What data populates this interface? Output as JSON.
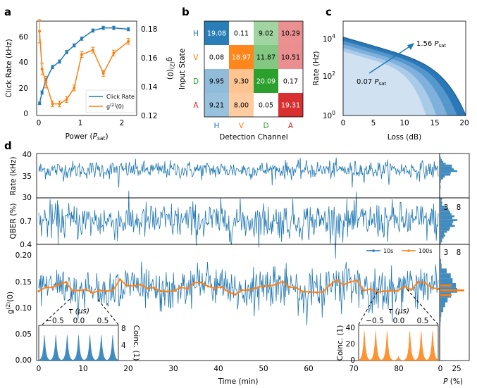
{
  "figure": {
    "panel_labels": [
      "a",
      "b",
      "c",
      "d"
    ]
  },
  "chart_data": [
    {
      "panel": "a",
      "type": "line",
      "xlabel": "Power (Psat)",
      "xlabel_parts": [
        "Power (",
        "P",
        "sat",
        ")"
      ],
      "ylabel": "Click Rate (kHz)",
      "y2label": "g(2)(0)",
      "xlim": [
        0,
        2.4
      ],
      "ylim": [
        0,
        70
      ],
      "y2lim": [
        0.12,
        0.185
      ],
      "xticks": [
        "0",
        "1",
        "2"
      ],
      "yticks": [
        "0",
        "20",
        "40",
        "60"
      ],
      "y2ticks": [
        "0.12",
        "0.14",
        "0.16",
        "0.18"
      ],
      "legend_position": "lower-right",
      "series": [
        {
          "name": "Click Rate",
          "color": "#1f77b4",
          "axis": "left",
          "x": [
            0.07,
            0.13,
            0.22,
            0.38,
            0.55,
            0.72,
            0.9,
            1.08,
            1.35,
            1.6,
            1.85,
            2.2
          ],
          "y": [
            9,
            17,
            26,
            36,
            40,
            47,
            52,
            57,
            63,
            65,
            65,
            64
          ],
          "err": [
            1,
            1.2,
            1.2,
            1.2,
            1.2,
            1.2,
            1.2,
            1.2,
            1.2,
            1.2,
            1.2,
            1.2
          ]
        },
        {
          "name": "g(2)(0)",
          "color": "#ff7f0e",
          "axis": "right",
          "x": [
            0.07,
            0.13,
            0.22,
            0.38,
            0.55,
            0.72,
            0.9,
            1.08,
            1.35,
            1.6,
            1.85,
            2.2
          ],
          "y": [
            0.178,
            0.152,
            0.143,
            0.128,
            0.128,
            0.131,
            0.139,
            0.162,
            0.165,
            0.149,
            0.163,
            0.171
          ],
          "err": [
            0.008,
            0.004,
            0.004,
            0.002,
            0.002,
            0.002,
            0.002,
            0.002,
            0.002,
            0.002,
            0.002,
            0.002
          ]
        }
      ],
      "legend": [
        "Click Rate",
        "g(2)(0)"
      ]
    },
    {
      "panel": "b",
      "type": "heatmap",
      "xlabel": "Detection Channel",
      "ylabel": "Input State",
      "rows": [
        "H",
        "V",
        "D",
        "A"
      ],
      "cols": [
        "H",
        "V",
        "D",
        "A"
      ],
      "row_colors": [
        "#1f77b4",
        "#ff7f0e",
        "#2ca02c",
        "#d62728"
      ],
      "values": [
        [
          19.08,
          0.11,
          9.02,
          10.29
        ],
        [
          0.08,
          18.97,
          11.87,
          10.51
        ],
        [
          9.95,
          9.3,
          20.09,
          0.17
        ],
        [
          9.21,
          8.0,
          0.05,
          19.31
        ]
      ],
      "value_labels": [
        [
          "19.08",
          "0.11",
          "9.02",
          "10.29"
        ],
        [
          "0.08",
          "18.97",
          "11.87",
          "10.51"
        ],
        [
          "9.95",
          "9.30",
          "20.09",
          "0.17"
        ],
        [
          "9.21",
          "8.00",
          "0.05",
          "19.31"
        ]
      ]
    },
    {
      "panel": "c",
      "type": "area",
      "xlabel": "Loss (dB)",
      "ylabel": "Rate (Hz)",
      "xlim": [
        0,
        20
      ],
      "ylim_log10": [
        0,
        5.3
      ],
      "xticks": [
        "0",
        "5",
        "10",
        "15",
        "20"
      ],
      "yticks_exp": [
        "0",
        "2",
        "4"
      ],
      "annotation_high": "1.56 Psat",
      "annotation_low": "0.07 Psat",
      "annotation_parts": {
        "high_num": "1.56",
        "low_num": "0.07",
        "p": "P",
        "sub": "sat"
      },
      "curves_r0_log10": [
        3.6,
        3.8,
        4.0,
        4.2,
        4.4
      ],
      "dark_count_cutoff_db": [
        13.5,
        15.2,
        17.0,
        18.6,
        20.0
      ]
    },
    {
      "panel": "d",
      "type": "line",
      "xlabel": "Time (min)",
      "xlim": [
        0,
        80
      ],
      "xticks": [
        "0",
        "10",
        "20",
        "30",
        "40",
        "50",
        "60",
        "70",
        "80"
      ],
      "rows": [
        {
          "ylabel": "Rate (kHz)",
          "ylim": [
            30,
            40
          ],
          "yticks": [
            "30",
            "35",
            "40"
          ],
          "mean": 36.3,
          "noise": 1.0,
          "color": "#1f77b4"
        },
        {
          "ylabel": "QBER (%)",
          "ylim": [
            0.4,
            1.0
          ],
          "yticks": [
            "0.4",
            "0.7"
          ],
          "mean": 0.7,
          "noise": 0.12,
          "color": "#1f77b4"
        },
        {
          "ylabel": "g(2)(0)",
          "ylim": [
            0,
            0.22
          ],
          "yticks": [
            "0.00",
            "0.05",
            "0.10",
            "0.15",
            "0.20"
          ],
          "mean": 0.137,
          "noise": 0.02,
          "color": "#1f77b4"
        }
      ],
      "legend": [
        "10s",
        "100s"
      ],
      "series_colors": [
        "#1f77b4",
        "#ff7f0e"
      ],
      "hist_xlabel": "P (%)",
      "hist_xlabel_parts": [
        "P",
        " (%)"
      ],
      "hist_xticks": [
        "0",
        "25"
      ],
      "hist_inner_ticks": [
        "3",
        "8"
      ],
      "inset_left": {
        "title": "τ (μs)",
        "ylabel": "Coinc. (1)",
        "xticks": [
          "−0.5",
          "0.0",
          "0.5"
        ],
        "yticks": [
          "4",
          "8"
        ],
        "side_peak_height": 7,
        "center_peak_height": 7
      },
      "inset_right": {
        "title": "τ (μs)",
        "ylabel": "Coinc. (1)",
        "xticks": [
          "−0.5",
          "0.0",
          "0.5"
        ],
        "yticks": [
          "0",
          "20",
          "40"
        ],
        "side_peak_height": 38,
        "center_peak_height": 5
      }
    }
  ]
}
